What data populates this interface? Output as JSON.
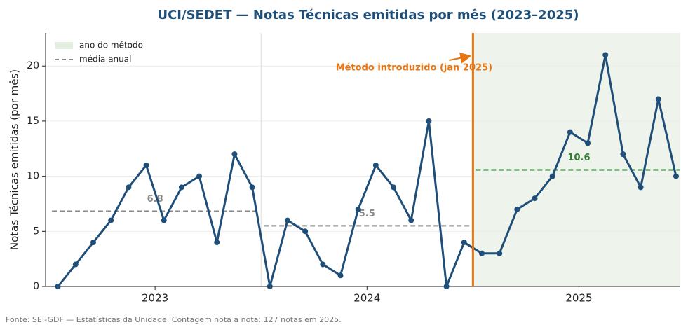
{
  "chart_data": {
    "type": "line",
    "title": "UCI/SEDET — Notas Técnicas emitidas por mês (2023–2025)",
    "y_label": "Notas Técnicas emitidas (por mês)",
    "source": "Fonte: SEI-GDF — Estatísticas da Unidade. Contagem nota a nota: 127 notas em 2025.",
    "categories": [
      null,
      null,
      null,
      null,
      null,
      null,
      null,
      null,
      null,
      null,
      null,
      null,
      null,
      null,
      null,
      null,
      null,
      null,
      null,
      null,
      null,
      null,
      null,
      null,
      null,
      null,
      null,
      null,
      null,
      null,
      null,
      null,
      null,
      null,
      null,
      null
    ],
    "xlim": [
      -0.7,
      35.24
    ],
    "xticks": [
      {
        "value": 5.5,
        "label": "2023"
      },
      {
        "value": 17.5,
        "label": "2024"
      },
      {
        "value": 29.5,
        "label": "2025"
      }
    ],
    "ylim": [
      0,
      23
    ],
    "yticks": [
      0,
      5,
      10,
      15,
      20
    ],
    "grid": true,
    "series": [
      {
        "color": "#1f4e79",
        "values": [
          0,
          2,
          4,
          6,
          9,
          11,
          6,
          9,
          10,
          4,
          12,
          9,
          0,
          6,
          5,
          2,
          1,
          7,
          11,
          9,
          6,
          15,
          0,
          4,
          3,
          3,
          7,
          8,
          10,
          14,
          13,
          21,
          12,
          9,
          17,
          10
        ]
      }
    ],
    "annual_means": {
      "name": "média anual",
      "values": [
        6.83,
        5.5,
        10.58
      ],
      "value_labels": [
        "6.8",
        "5.5",
        "10.6"
      ],
      "colors": [
        "#888888",
        "#888888",
        "#2e7d32"
      ]
    },
    "highlight": {
      "name": "ano do método",
      "color": "#eef3ec"
    },
    "annotation": {
      "text": "Método introduzido (jan 2025)",
      "color": "#e87511"
    }
  }
}
